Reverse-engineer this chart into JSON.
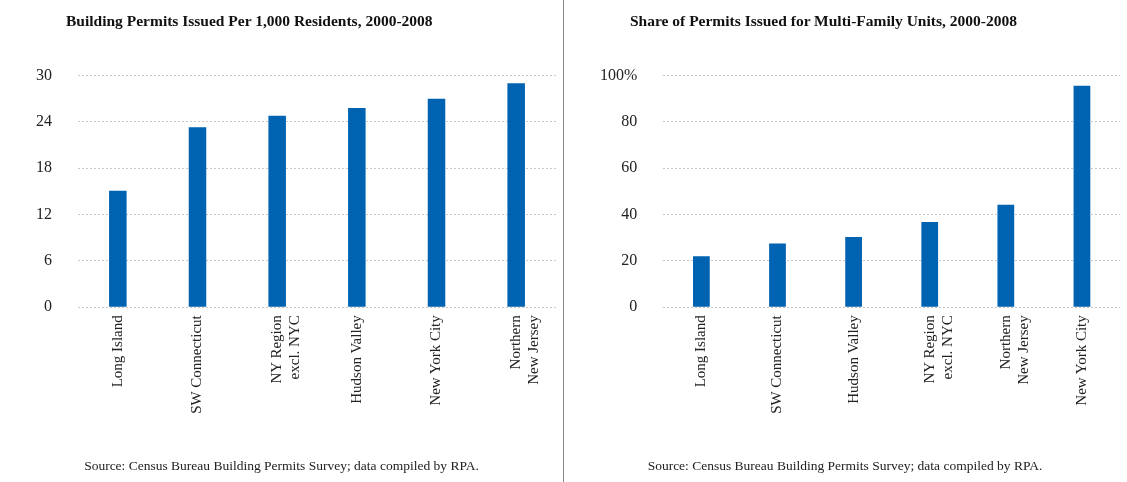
{
  "chart_data": [
    {
      "type": "bar",
      "title": "Building Permits Issued Per 1,000 Residents, 2000-2008",
      "categories": [
        "Long Island",
        "SW Connecticut",
        "NY Region\nexcl. NYC",
        "Hudson Valley",
        "New York City",
        "Northern\nNew Jersey"
      ],
      "values": [
        15.1,
        23.3,
        24.8,
        25.8,
        27.0,
        29.0
      ],
      "color": "#0063b1",
      "ylim": [
        0,
        30
      ],
      "yticks": [
        0,
        6,
        12,
        18,
        24,
        30
      ],
      "grid": "y",
      "annotations": [
        "Source: Census Bureau Building Permits Survey; data compiled by RPA."
      ]
    },
    {
      "type": "bar",
      "title": "Share of Permits Issued for Multi-Family Units, 2000-2008",
      "categories": [
        "Long Island",
        "SW Connecticut",
        "Hudson Valley",
        "NY Region\nexcl. NYC",
        "Northern\nNew Jersey",
        "New York City"
      ],
      "values": [
        22,
        27.5,
        30.3,
        36.8,
        44.2,
        95.6
      ],
      "color": "#0063b1",
      "ylim": [
        0,
        100
      ],
      "yticks": [
        0,
        20,
        40,
        60,
        {
          "value": 100,
          "label": "100%"
        },
        80
      ],
      "grid": "y",
      "annotations": [
        "Source: Census Bureau Building Permits Survey; data compiled by RPA."
      ]
    }
  ]
}
